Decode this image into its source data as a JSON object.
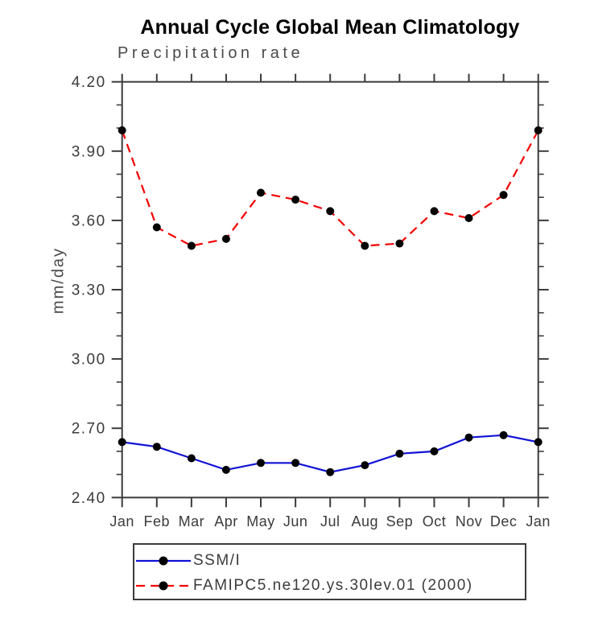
{
  "page": {
    "background": "#ffffff"
  },
  "chart_data": {
    "type": "line",
    "title": "Annual Cycle Global Mean Climatology",
    "subtitle": "Precipitation rate",
    "ylabel": "mm/day",
    "xlabel": "",
    "categories": [
      "Jan",
      "Feb",
      "Mar",
      "Apr",
      "May",
      "Jun",
      "Jul",
      "Aug",
      "Sep",
      "Oct",
      "Nov",
      "Dec",
      "Jan"
    ],
    "ylim": [
      2.4,
      4.2
    ],
    "ytick_major": [
      2.4,
      2.7,
      3.0,
      3.3,
      3.6,
      3.9,
      4.2
    ],
    "ytick_major_labels": [
      "2.40",
      "2.70",
      "3.00",
      "3.30",
      "3.60",
      "3.90",
      "4.20"
    ],
    "ytick_minor_step": 0.1,
    "grid": false,
    "axis_color": "#3c3c3c",
    "legend_position": "bottom-left-box",
    "series": [
      {
        "name": "SSM/I",
        "color": "#1111d6",
        "dash": "solid",
        "marker": "circle",
        "marker_color": "#000000",
        "values": [
          2.64,
          2.62,
          2.57,
          2.52,
          2.55,
          2.55,
          2.51,
          2.54,
          2.59,
          2.6,
          2.66,
          2.67,
          2.64
        ]
      },
      {
        "name": "FAMIPC5.ne120.ys.30lev.01 (2000)",
        "color": "#f40000",
        "dash": "dashed",
        "marker": "circle",
        "marker_color": "#000000",
        "values": [
          3.99,
          3.57,
          3.49,
          3.52,
          3.72,
          3.69,
          3.64,
          3.49,
          3.5,
          3.64,
          3.61,
          3.71,
          3.99
        ]
      }
    ]
  }
}
